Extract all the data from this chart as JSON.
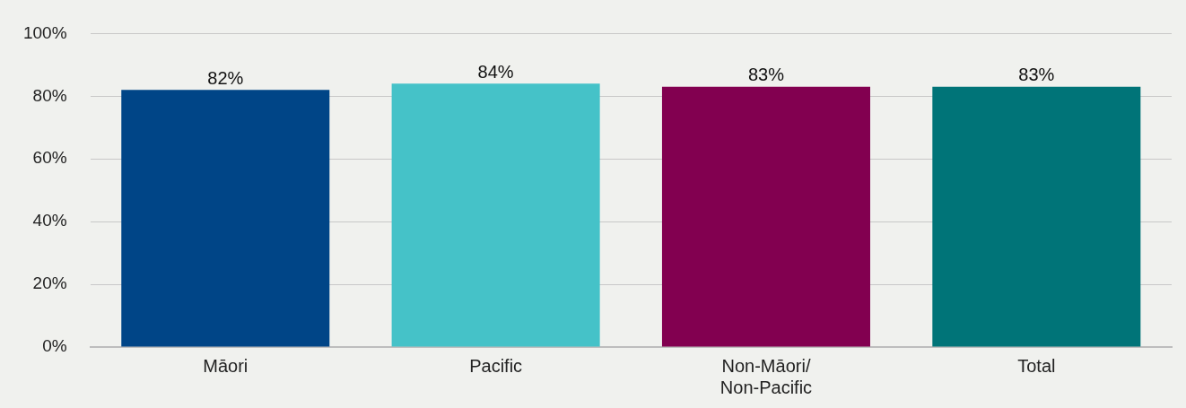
{
  "chart_data": {
    "type": "bar",
    "categories": [
      "Māori",
      "Pacific",
      "Non-Māori/ Non-Pacific",
      "Total"
    ],
    "values": [
      82,
      84,
      83,
      83
    ],
    "colors": [
      "#004587",
      "#45c2c8",
      "#820050",
      "#007478"
    ],
    "value_labels": [
      "82%",
      "84%",
      "83%",
      "83%"
    ],
    "ylim": [
      0,
      100
    ],
    "yticks": [
      {
        "value": 0,
        "label": "0%"
      },
      {
        "value": 20,
        "label": "20%"
      },
      {
        "value": 40,
        "label": "40%"
      },
      {
        "value": 60,
        "label": "60%"
      },
      {
        "value": 80,
        "label": "80%"
      },
      {
        "value": 100,
        "label": "100%"
      }
    ],
    "grid": "y",
    "legend": false
  }
}
